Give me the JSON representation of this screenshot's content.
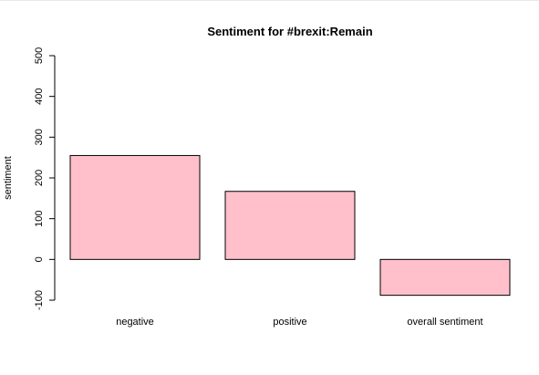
{
  "chart_data": {
    "type": "bar",
    "title": "Sentiment for #brexit:Remain",
    "xlabel": "",
    "ylabel": "sentiment",
    "categories": [
      "negative",
      "positive",
      "overall sentiment"
    ],
    "values": [
      255,
      167,
      -88
    ],
    "ylim": [
      -100,
      500
    ],
    "yticks": [
      -100,
      0,
      100,
      200,
      300,
      400,
      500
    ],
    "bar_color": "#ffc0cb",
    "bar_border": "#000000",
    "grid": false,
    "legend": "none"
  }
}
